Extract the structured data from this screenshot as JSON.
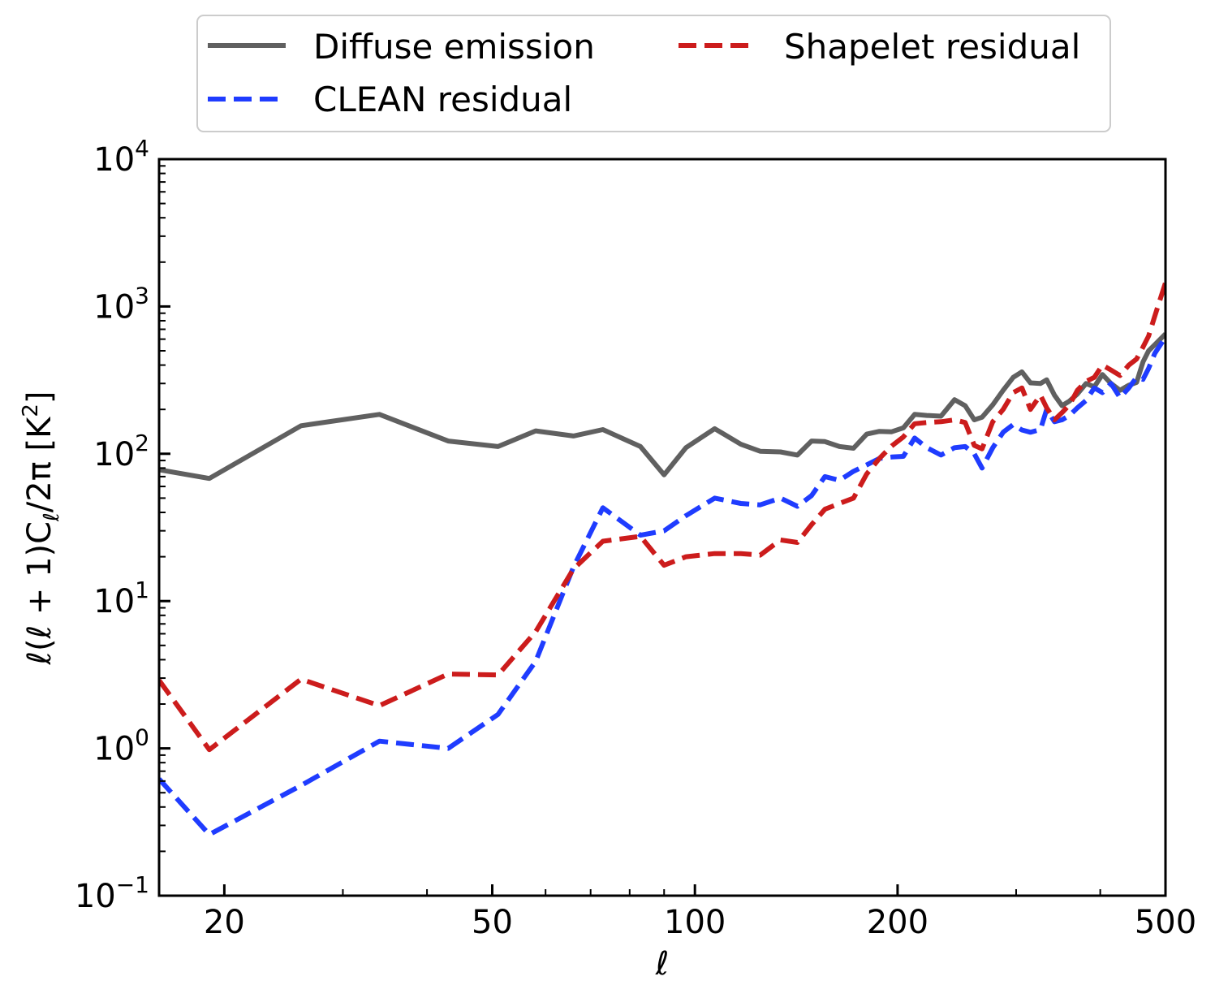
{
  "chart_data": {
    "type": "line",
    "title": "",
    "xlabel": "ℓ",
    "ylabel": "ℓ(ℓ + 1)C",
    "ylabel_sub": "ℓ",
    "ylabel_tail": "/2π [K",
    "ylabel_sup": "2",
    "ylabel_close": "]",
    "xscale": "log",
    "yscale": "log",
    "xlim": [
      16,
      500
    ],
    "ylim": [
      0.1,
      10000
    ],
    "x_ticks": [
      {
        "value": 20,
        "label": "20"
      },
      {
        "value": 50,
        "label": "50"
      },
      {
        "value": 100,
        "label": "100"
      },
      {
        "value": 200,
        "label": "200"
      },
      {
        "value": 500,
        "label": "500"
      }
    ],
    "y_ticks": [
      {
        "value": 0.1,
        "base": "10",
        "exp": "−1"
      },
      {
        "value": 1,
        "base": "10",
        "exp": "0"
      },
      {
        "value": 10,
        "base": "10",
        "exp": "1"
      },
      {
        "value": 100,
        "base": "10",
        "exp": "2"
      },
      {
        "value": 1000,
        "base": "10",
        "exp": "3"
      },
      {
        "value": 10000,
        "base": "10",
        "exp": "4"
      }
    ],
    "legend_position": "top-center, outside",
    "series": [
      {
        "name": "Diffuse emission",
        "color": "#606060",
        "style": "solid",
        "points": [
          [
            16,
            78
          ],
          [
            19,
            68
          ],
          [
            26,
            155
          ],
          [
            34,
            185
          ],
          [
            43,
            122
          ],
          [
            51,
            112
          ],
          [
            58,
            143
          ],
          [
            66,
            132
          ],
          [
            73,
            146
          ],
          [
            83,
            112
          ],
          [
            90,
            72
          ],
          [
            97,
            110
          ],
          [
            107,
            148
          ],
          [
            117,
            116
          ],
          [
            125,
            104
          ],
          [
            134,
            103
          ],
          [
            142,
            98
          ],
          [
            149,
            122
          ],
          [
            156,
            121
          ],
          [
            164,
            112
          ],
          [
            172,
            109
          ],
          [
            180,
            136
          ],
          [
            188,
            142
          ],
          [
            196,
            141
          ],
          [
            204,
            150
          ],
          [
            212,
            185
          ],
          [
            221,
            182
          ],
          [
            232,
            180
          ],
          [
            243,
            233
          ],
          [
            252,
            212
          ],
          [
            260,
            170
          ],
          [
            267,
            177
          ],
          [
            277,
            215
          ],
          [
            287,
            270
          ],
          [
            297,
            330
          ],
          [
            306,
            360
          ],
          [
            315,
            303
          ],
          [
            326,
            300
          ],
          [
            333,
            318
          ],
          [
            342,
            250
          ],
          [
            351,
            212
          ],
          [
            360,
            228
          ],
          [
            370,
            255
          ],
          [
            381,
            300
          ],
          [
            392,
            285
          ],
          [
            403,
            345
          ],
          [
            415,
            300
          ],
          [
            428,
            270
          ],
          [
            441,
            292
          ],
          [
            453,
            305
          ],
          [
            463,
            420
          ],
          [
            472,
            500
          ],
          [
            482,
            550
          ],
          [
            500,
            650
          ]
        ]
      },
      {
        "name": "CLEAN residual",
        "color": "#1f3cff",
        "style": "dashed",
        "points": [
          [
            16,
            0.62
          ],
          [
            19,
            0.26
          ],
          [
            26,
            0.56
          ],
          [
            34,
            1.12
          ],
          [
            43,
            1.0
          ],
          [
            51,
            1.7
          ],
          [
            58,
            3.9
          ],
          [
            66,
            17
          ],
          [
            73,
            43
          ],
          [
            83,
            28
          ],
          [
            90,
            30
          ],
          [
            97,
            38
          ],
          [
            107,
            50
          ],
          [
            117,
            46
          ],
          [
            125,
            45
          ],
          [
            134,
            50
          ],
          [
            142,
            44
          ],
          [
            149,
            52
          ],
          [
            156,
            70
          ],
          [
            164,
            66
          ],
          [
            172,
            76
          ],
          [
            180,
            84
          ],
          [
            188,
            93
          ],
          [
            196,
            95
          ],
          [
            204,
            96
          ],
          [
            212,
            128
          ],
          [
            221,
            110
          ],
          [
            232,
            98
          ],
          [
            243,
            110
          ],
          [
            252,
            112
          ],
          [
            260,
            100
          ],
          [
            267,
            80
          ],
          [
            277,
            110
          ],
          [
            287,
            140
          ],
          [
            297,
            158
          ],
          [
            306,
            145
          ],
          [
            315,
            140
          ],
          [
            326,
            146
          ],
          [
            333,
            200
          ],
          [
            342,
            165
          ],
          [
            351,
            170
          ],
          [
            360,
            182
          ],
          [
            370,
            205
          ],
          [
            381,
            230
          ],
          [
            392,
            280
          ],
          [
            403,
            260
          ],
          [
            415,
            300
          ],
          [
            428,
            240
          ],
          [
            441,
            280
          ],
          [
            453,
            330
          ],
          [
            463,
            320
          ],
          [
            472,
            380
          ],
          [
            482,
            480
          ],
          [
            500,
            620
          ]
        ]
      },
      {
        "name": "Shapelet residual",
        "color": "#cc1c1c",
        "style": "dashed",
        "points": [
          [
            16,
            2.9
          ],
          [
            19,
            0.98
          ],
          [
            26,
            2.95
          ],
          [
            34,
            1.95
          ],
          [
            43,
            3.2
          ],
          [
            51,
            3.15
          ],
          [
            58,
            6.2
          ],
          [
            66,
            16.5
          ],
          [
            73,
            25.5
          ],
          [
            83,
            27.5
          ],
          [
            90,
            17.5
          ],
          [
            97,
            20
          ],
          [
            107,
            21
          ],
          [
            117,
            21
          ],
          [
            125,
            20.5
          ],
          [
            134,
            26
          ],
          [
            142,
            25
          ],
          [
            149,
            33
          ],
          [
            156,
            42
          ],
          [
            164,
            46
          ],
          [
            172,
            50
          ],
          [
            180,
            73
          ],
          [
            188,
            93
          ],
          [
            196,
            113
          ],
          [
            204,
            130
          ],
          [
            212,
            160
          ],
          [
            221,
            163
          ],
          [
            232,
            165
          ],
          [
            243,
            170
          ],
          [
            252,
            163
          ],
          [
            260,
            114
          ],
          [
            267,
            108
          ],
          [
            277,
            165
          ],
          [
            287,
            200
          ],
          [
            297,
            260
          ],
          [
            306,
            280
          ],
          [
            315,
            200
          ],
          [
            326,
            250
          ],
          [
            333,
            205
          ],
          [
            342,
            170
          ],
          [
            351,
            190
          ],
          [
            360,
            215
          ],
          [
            370,
            270
          ],
          [
            381,
            310
          ],
          [
            392,
            330
          ],
          [
            403,
            400
          ],
          [
            415,
            370
          ],
          [
            428,
            340
          ],
          [
            441,
            400
          ],
          [
            453,
            440
          ],
          [
            463,
            530
          ],
          [
            472,
            630
          ],
          [
            482,
            860
          ],
          [
            500,
            1450
          ]
        ]
      }
    ]
  }
}
